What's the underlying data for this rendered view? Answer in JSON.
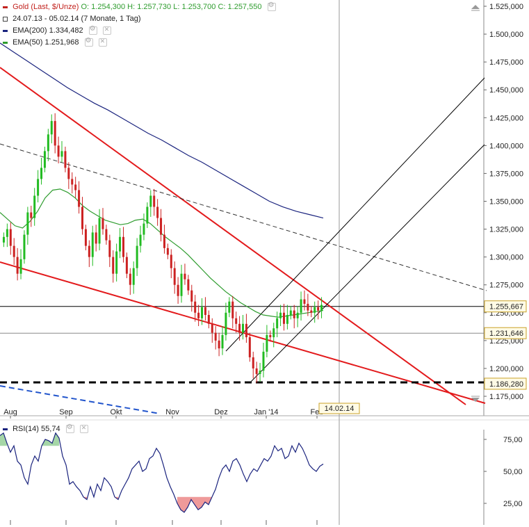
{
  "header": {
    "instrument": "Gold (Last, $/Unze)",
    "open": "O: 1.254,300",
    "high": "H: 1.257,730",
    "low": "L: 1.253,700",
    "close": "C: 1.257,550",
    "range": "24.07.13 - 05.02.14 (7 Monate, 1 Tag)",
    "ema200_label": "EMA(200)",
    "ema200_value": "1.334,482",
    "ema50_label": "EMA(50)",
    "ema50_value": "1.251,968"
  },
  "colors": {
    "up": "#22bb22",
    "down": "#cc2222",
    "ema200": "#1a237e",
    "ema50": "#2e9c2e",
    "trend": "#e31a1c",
    "channel": "#000000",
    "rsi": "#1a237e",
    "rsi_overbought": "#a5d6a7",
    "rsi_oversold": "#ef9a9a"
  },
  "icons": [
    "gear-icon",
    "close-icon",
    "scroll-up-icon",
    "scroll-down-icon"
  ],
  "rsi_panel": {
    "label": "RSI(14)",
    "value": "55,74",
    "ticks": [
      "75,00",
      "50,00",
      "25,00"
    ]
  },
  "date_marker": "14.02.14",
  "chart_data": [
    {
      "type": "candlestick",
      "title": "Gold (Last, $/Unze)",
      "x_ticks": [
        "Aug",
        "Sep",
        "Okt",
        "Nov",
        "Dez",
        "Jan '14",
        "Feb"
      ],
      "y_ticks": [
        "1.525,000",
        "1.500,000",
        "1.475,000",
        "1.450,000",
        "1.425,000",
        "1.400,000",
        "1.375,000",
        "1.350,000",
        "1.325,000",
        "1.300,000",
        "1.275,000",
        "1.250,000",
        "1.225,000",
        "1.200,000",
        "1.175,000"
      ],
      "ylim": [
        1165,
        1528
      ],
      "grid": false,
      "price_labels": [
        {
          "text": "1.255,667",
          "value": 1255.667
        },
        {
          "text": "1.231,646",
          "value": 1231.646
        },
        {
          "text": "1.186,280",
          "value": 1186.28
        }
      ],
      "series": [
        {
          "name": "EMA(200)",
          "values": [
            1492,
            1484,
            1476,
            1468,
            1460,
            1452,
            1445,
            1438,
            1432,
            1425,
            1418,
            1411,
            1405,
            1398,
            1391,
            1385,
            1378,
            1371,
            1364,
            1357,
            1350,
            1345,
            1341,
            1338,
            1335
          ]
        },
        {
          "name": "EMA(50)",
          "values": [
            1340,
            1334,
            1328,
            1326,
            1332,
            1341,
            1353,
            1360,
            1361,
            1358,
            1353,
            1346,
            1341,
            1337,
            1333,
            1331,
            1329,
            1330,
            1333,
            1334,
            1330,
            1324,
            1318,
            1313,
            1308,
            1302,
            1295,
            1288,
            1281,
            1275,
            1269,
            1264,
            1259,
            1255,
            1251,
            1248,
            1247,
            1246,
            1247,
            1248,
            1249,
            1250,
            1251,
            1252
          ]
        }
      ],
      "candles_close": [
        1318,
        1325,
        1310,
        1300,
        1285,
        1298,
        1320,
        1340,
        1335,
        1355,
        1370,
        1380,
        1395,
        1410,
        1422,
        1400,
        1390,
        1395,
        1380,
        1370,
        1365,
        1360,
        1345,
        1325,
        1310,
        1300,
        1322,
        1312,
        1335,
        1325,
        1315,
        1300,
        1285,
        1305,
        1318,
        1300,
        1285,
        1275,
        1290,
        1310,
        1320,
        1330,
        1345,
        1355,
        1345,
        1335,
        1320,
        1308,
        1302,
        1290,
        1275,
        1265,
        1285,
        1280,
        1270,
        1260,
        1250,
        1245,
        1255,
        1248,
        1240,
        1232,
        1225,
        1218,
        1230,
        1250,
        1260,
        1245,
        1240,
        1232,
        1240,
        1228,
        1210,
        1200,
        1195,
        1198,
        1215,
        1230,
        1228,
        1236,
        1245,
        1250,
        1240,
        1248,
        1252,
        1245,
        1250,
        1262,
        1258,
        1252,
        1250,
        1255,
        1252,
        1257
      ],
      "lines": [
        {
          "name": "Abwärtstrend",
          "style": "solid",
          "color": "#e31a1c"
        },
        {
          "name": "Unterstützung",
          "style": "solid",
          "color": "#e31a1c"
        },
        {
          "name": "Widerstand gestrichelt",
          "style": "dashed",
          "color": "#333333"
        },
        {
          "name": "Aufwärtskanal",
          "style": "solid",
          "color": "#000000"
        },
        {
          "name": "Horizontale 1.186,280",
          "style": "dashed",
          "color": "#000000"
        }
      ]
    },
    {
      "type": "line",
      "title": "RSI(14)",
      "y_ticks": [
        "75,00",
        "50,00",
        "25,00"
      ],
      "ylim": [
        15,
        85
      ],
      "x_ticks": [
        "Aug",
        "Sep",
        "Okt",
        "Nov",
        "Dez",
        "Jan '14",
        "Feb"
      ],
      "series": [
        {
          "name": "RSI(14)",
          "values": [
            78,
            80,
            72,
            65,
            70,
            58,
            55,
            45,
            40,
            55,
            62,
            58,
            70,
            75,
            74,
            72,
            80,
            76,
            62,
            55,
            40,
            42,
            38,
            35,
            30,
            28,
            38,
            30,
            40,
            35,
            45,
            42,
            38,
            30,
            28,
            35,
            40,
            45,
            52,
            55,
            58,
            50,
            52,
            60,
            62,
            68,
            64,
            55,
            45,
            38,
            32,
            25,
            20,
            18,
            22,
            28,
            24,
            20,
            22,
            26,
            24,
            30,
            36,
            45,
            52,
            55,
            50,
            58,
            60,
            55,
            48,
            42,
            48,
            52,
            50,
            55,
            60,
            58,
            62,
            70,
            66,
            68,
            60,
            62,
            70,
            65,
            72,
            68,
            62,
            55,
            52,
            50,
            54,
            55.74
          ]
        }
      ]
    }
  ]
}
